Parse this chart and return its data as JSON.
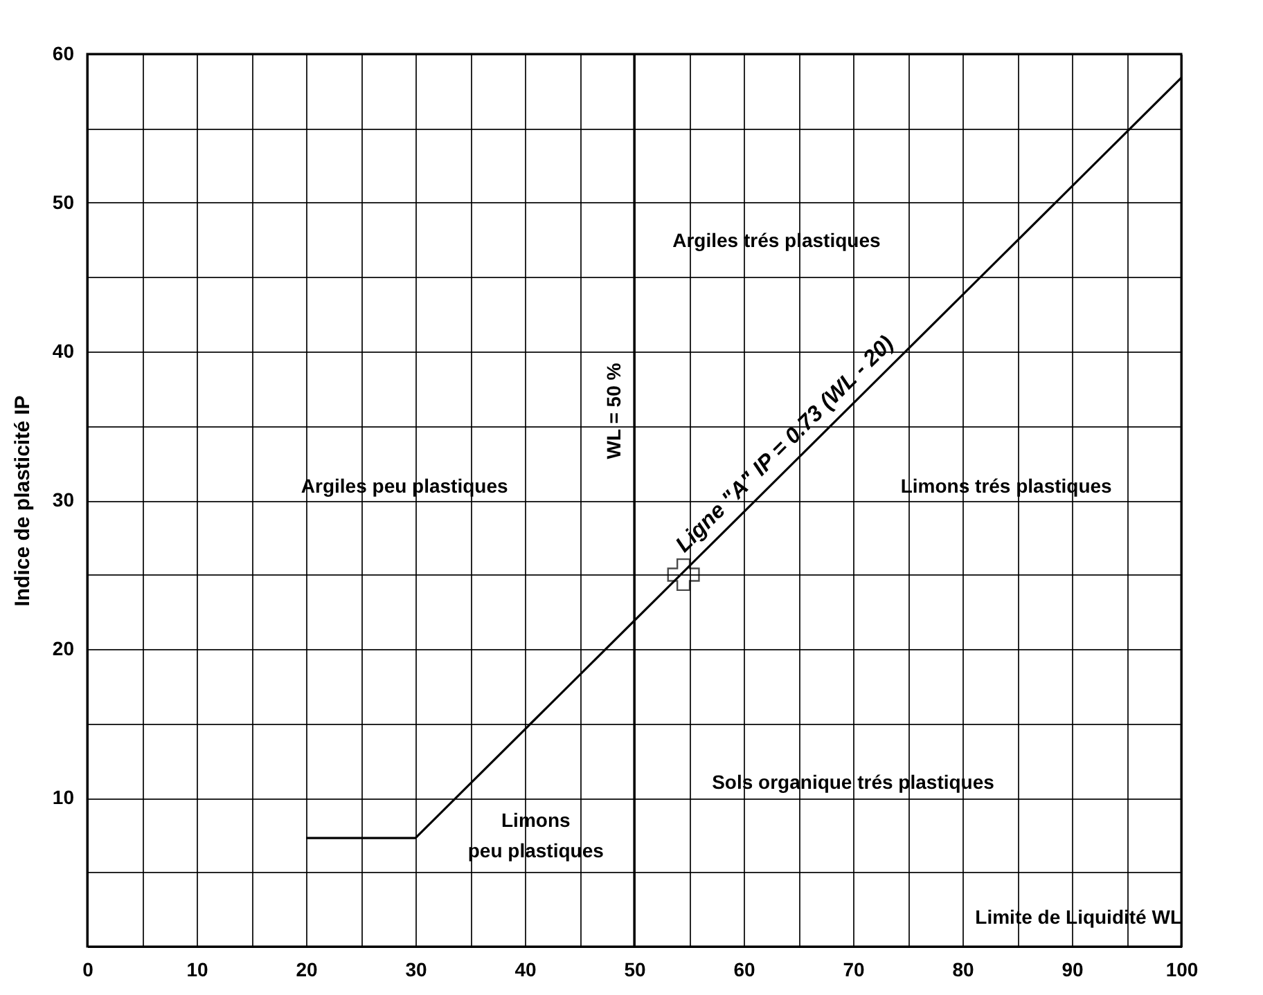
{
  "chart_data": {
    "type": "line",
    "xlabel": "Limite de Liquidité WL",
    "ylabel": "Indice de plasticité IP",
    "xlim": [
      0,
      100
    ],
    "ylim": [
      0,
      60
    ],
    "xticks": [
      0,
      {
        "value": 5,
        "label": null
      },
      10,
      {
        "value": 15,
        "label": null
      },
      20,
      {
        "value": 25,
        "label": null
      },
      30,
      {
        "value": 35,
        "label": null
      },
      40,
      {
        "value": 45,
        "label": null
      },
      50,
      {
        "value": 55,
        "label": null
      },
      60,
      {
        "value": 65,
        "label": null
      },
      70,
      {
        "value": 75,
        "label": null
      },
      80,
      {
        "value": 85,
        "label": null
      },
      90,
      {
        "value": 95,
        "label": null
      },
      100
    ],
    "yticks": [
      {
        "value": 0,
        "label": null
      },
      {
        "value": 5,
        "label": null
      },
      10,
      {
        "value": 15,
        "label": null
      },
      20,
      {
        "value": 25,
        "label": null
      },
      30,
      {
        "value": 35,
        "label": null
      },
      40,
      {
        "value": 45,
        "label": null
      },
      50,
      {
        "value": 55,
        "label": null
      },
      60
    ],
    "grid": true,
    "marker": "none",
    "series": [
      {
        "type": "line",
        "name": "Ligne \"A\"  IP = 0.73 (WL - 20)",
        "color": "#000000",
        "x": [
          20,
          30,
          100
        ],
        "values": [
          7.3,
          7.3,
          58.4
        ]
      },
      {
        "type": "scatter",
        "marker": "cross",
        "color": "#000000",
        "x": [
          54.5
        ],
        "values": [
          25
        ]
      }
    ],
    "ref_lines": [
      {
        "axis": "x",
        "value": 50,
        "label": "WL = 50 %"
      }
    ],
    "annotations": [
      "Argiles trés plastiques",
      "Argiles peu plastiques",
      "Limons trés plastiques",
      "Sols organique trés plastiques",
      "Limons\npeu plastiques"
    ]
  }
}
